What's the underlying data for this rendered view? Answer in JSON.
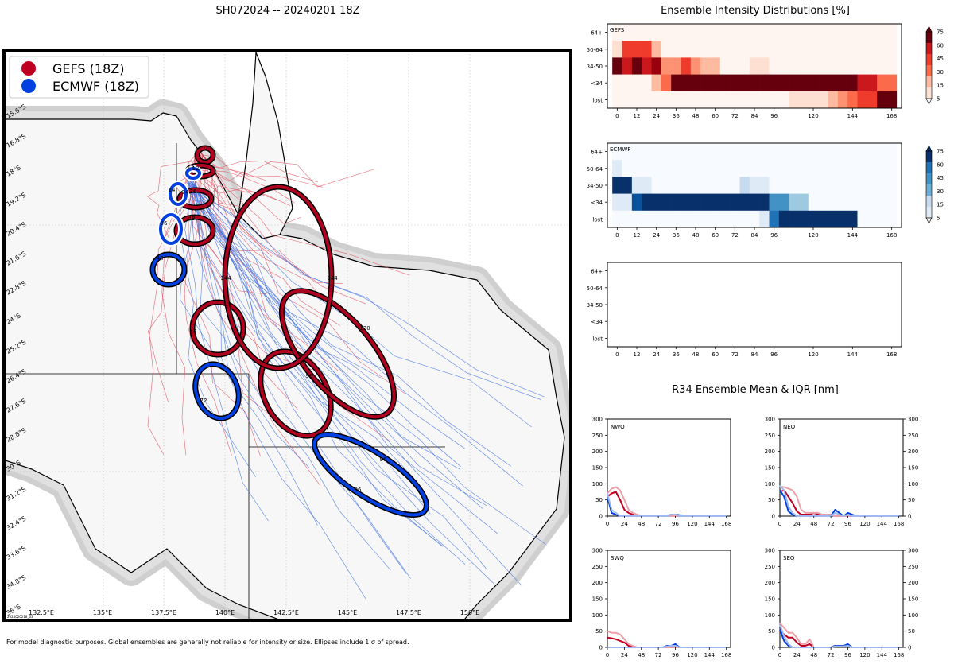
{
  "main_title": "SH072024 -- 20240201 18Z",
  "footnote": "For model diagnostic purposes. Global ensembles are generally not reliable for intensity or size. Ellipses include 1 σ of spread.",
  "map": {
    "legend": [
      {
        "label": "GEFS (18Z)",
        "color": "#c00020"
      },
      {
        "label": "ECMWF (18Z)",
        "color": "#0040e0"
      }
    ],
    "lat_labels": [
      "15.6°S",
      "16.8°S",
      "18°S",
      "19.2°S",
      "20.4°S",
      "21.6°S",
      "22.8°S",
      "24°S",
      "25.2°S",
      "26.4°S",
      "27.6°S",
      "28.8°S",
      "30°S",
      "31.2°S",
      "32.4°S",
      "33.6°S",
      "34.8°S",
      "36°S"
    ],
    "lon_labels": [
      "132.5°E",
      "135°E",
      "137.5°E",
      "140°E",
      "142.5°E",
      "145°E",
      "147.5°E",
      "150°E"
    ],
    "stamp": "2024020218_03",
    "gefs_hours": [
      "0",
      "12",
      "24",
      "36",
      "48",
      "72",
      "96",
      "120",
      "144",
      "144"
    ],
    "ecmwf_hours": [
      "12",
      "24",
      "36",
      "48",
      "72",
      "96",
      "96"
    ]
  },
  "intensity": {
    "title": "Ensemble Intensity Distributions [%]",
    "y_categories": [
      "64+",
      "50-64",
      "34-50",
      "<34",
      "lost"
    ],
    "x_ticks": [
      "0",
      "12",
      "24",
      "36",
      "48",
      "60",
      "72",
      "84",
      "96",
      "120",
      "144",
      "168"
    ],
    "panels": [
      {
        "label": "GEFS",
        "scheme": "red"
      },
      {
        "label": "ECMWF",
        "scheme": "blue"
      },
      {
        "label": "",
        "scheme": "none"
      }
    ],
    "colorbar_ticks": [
      "75",
      "60",
      "45",
      "30",
      "15",
      "5"
    ]
  },
  "r34": {
    "title": "R34 Ensemble Mean & IQR [nm]",
    "y_ticks": [
      "0",
      "50",
      "100",
      "150",
      "200",
      "250",
      "300"
    ],
    "x_ticks": [
      "0",
      "24",
      "48",
      "72",
      "96",
      "120",
      "144",
      "168"
    ],
    "quadrants": [
      "NWQ",
      "NEQ",
      "SWQ",
      "SEQ"
    ]
  },
  "chart_data": [
    {
      "type": "heatmap",
      "title": "GEFS",
      "x": [
        0,
        6,
        12,
        18,
        24,
        30,
        36,
        42,
        48,
        54,
        60,
        66,
        72,
        78,
        84,
        90,
        96,
        102,
        108,
        114,
        120,
        126,
        132,
        138,
        144,
        150,
        156,
        162,
        168
      ],
      "y_categories": [
        "64+",
        "50-64",
        "34-50",
        "<34",
        "lost"
      ],
      "values": {
        "64+": [
          0,
          0,
          0,
          0,
          0,
          0,
          0,
          0,
          0,
          0,
          0,
          0,
          0,
          0,
          0,
          0,
          0,
          0,
          0,
          0,
          0,
          0,
          0,
          0,
          0,
          0,
          0,
          0,
          0
        ],
        "50-64": [
          5,
          45,
          45,
          45,
          15,
          0,
          0,
          0,
          0,
          0,
          0,
          0,
          0,
          0,
          0,
          0,
          0,
          0,
          0,
          0,
          0,
          0,
          0,
          0,
          0,
          0,
          0,
          0,
          0
        ],
        "34-50": [
          80,
          55,
          75,
          60,
          70,
          25,
          25,
          45,
          30,
          15,
          15,
          0,
          0,
          0,
          10,
          10,
          0,
          0,
          0,
          0,
          0,
          0,
          0,
          0,
          0,
          0,
          0,
          0,
          0
        ],
        "<34": [
          0,
          0,
          0,
          0,
          15,
          40,
          85,
          90,
          75,
          95,
          95,
          95,
          95,
          95,
          95,
          95,
          95,
          95,
          95,
          95,
          95,
          95,
          95,
          85,
          85,
          55,
          55,
          40,
          40
        ],
        "lost": [
          0,
          0,
          0,
          0,
          0,
          0,
          0,
          0,
          0,
          0,
          0,
          0,
          0,
          0,
          0,
          0,
          0,
          0,
          10,
          10,
          10,
          10,
          20,
          30,
          40,
          50,
          50,
          75,
          75
        ]
      }
    },
    {
      "type": "heatmap",
      "title": "ECMWF",
      "x": [
        0,
        6,
        12,
        18,
        24,
        30,
        36,
        42,
        48,
        54,
        60,
        66,
        72,
        78,
        84,
        90,
        96,
        102,
        108,
        114,
        120,
        126,
        132,
        138,
        144,
        150,
        156,
        162,
        168
      ],
      "y_categories": [
        "64+",
        "50-64",
        "34-50",
        "<34",
        "lost"
      ],
      "values": {
        "64+": [
          0,
          0,
          0,
          0,
          0,
          0,
          0,
          0,
          0,
          0,
          0,
          0,
          0,
          0,
          0,
          0,
          0,
          0,
          0,
          0,
          0,
          0,
          0,
          0,
          0,
          0,
          0,
          0,
          0
        ],
        "50-64": [
          10,
          0,
          0,
          0,
          0,
          0,
          0,
          0,
          0,
          0,
          0,
          0,
          0,
          0,
          0,
          0,
          0,
          0,
          0,
          0,
          0,
          0,
          0,
          0,
          0,
          0,
          0,
          0,
          0
        ],
        "34-50": [
          85,
          85,
          10,
          10,
          0,
          0,
          0,
          0,
          0,
          0,
          0,
          0,
          0,
          20,
          10,
          10,
          0,
          0,
          0,
          0,
          0,
          0,
          0,
          0,
          0,
          0,
          0,
          0,
          0
        ],
        "<34": [
          10,
          10,
          65,
          95,
          95,
          95,
          95,
          95,
          95,
          95,
          95,
          95,
          95,
          95,
          95,
          95,
          45,
          45,
          25,
          25,
          0,
          0,
          0,
          0,
          0,
          0,
          0,
          0,
          0
        ],
        "lost": [
          0,
          0,
          0,
          0,
          0,
          0,
          0,
          0,
          0,
          0,
          0,
          0,
          0,
          0,
          0,
          10,
          55,
          85,
          85,
          85,
          85,
          85,
          85,
          85,
          85,
          0,
          0,
          0,
          0
        ]
      }
    },
    {
      "type": "heatmap",
      "title": "",
      "x": [],
      "y_categories": [
        "64+",
        "50-64",
        "34-50",
        "<34",
        "lost"
      ],
      "values": {}
    },
    {
      "type": "line",
      "title": "NWQ",
      "x": [
        0,
        6,
        12,
        18,
        24,
        30,
        36,
        42,
        48,
        54,
        60,
        66,
        72,
        78,
        84,
        90,
        96,
        102,
        108,
        114,
        120,
        126,
        132,
        138,
        144,
        150,
        156,
        162,
        168
      ],
      "xlim": [
        0,
        174
      ],
      "ylim": [
        0,
        300
      ],
      "series": [
        {
          "name": "GEFS mean",
          "color": "#c00020",
          "values": [
            60,
            70,
            75,
            50,
            20,
            10,
            5,
            0,
            0,
            0,
            0,
            0,
            0,
            0,
            0,
            0,
            0,
            0,
            0,
            0,
            0,
            0,
            0,
            0,
            0,
            0,
            0,
            0,
            0
          ]
        },
        {
          "name": "GEFS IQR",
          "color": "#eea0a8",
          "values": [
            70,
            85,
            90,
            80,
            50,
            20,
            10,
            5,
            0,
            0,
            0,
            0,
            0,
            0,
            0,
            0,
            0,
            0,
            0,
            0,
            0,
            0,
            0,
            0,
            0,
            0,
            0,
            0,
            0
          ]
        },
        {
          "name": "ECMWF mean",
          "color": "#0040e0",
          "values": [
            60,
            10,
            5,
            0,
            0,
            0,
            0,
            0,
            0,
            0,
            0,
            0,
            0,
            0,
            0,
            5,
            5,
            3,
            0,
            0,
            0,
            0,
            0,
            0,
            0,
            0,
            0,
            0,
            0
          ]
        },
        {
          "name": "ECMWF IQR",
          "color": "#a0b8f0",
          "values": [
            70,
            20,
            10,
            0,
            0,
            0,
            0,
            0,
            0,
            0,
            0,
            0,
            0,
            0,
            0,
            5,
            5,
            0,
            0,
            0,
            0,
            0,
            0,
            0,
            0,
            0,
            0,
            0,
            0
          ]
        }
      ]
    },
    {
      "type": "line",
      "title": "NEQ",
      "x": [
        0,
        6,
        12,
        18,
        24,
        30,
        36,
        42,
        48,
        54,
        60,
        66,
        72,
        78,
        84,
        90,
        96,
        102,
        108,
        114,
        120,
        126,
        132,
        138,
        144,
        150,
        156,
        162,
        168
      ],
      "xlim": [
        0,
        174
      ],
      "ylim": [
        0,
        300
      ],
      "series": [
        {
          "name": "GEFS mean",
          "color": "#c00020",
          "values": [
            75,
            80,
            60,
            40,
            15,
            5,
            5,
            5,
            10,
            5,
            5,
            5,
            5,
            0,
            0,
            0,
            0,
            0,
            0,
            0,
            0,
            0,
            0,
            0,
            0,
            0,
            0,
            0,
            0
          ]
        },
        {
          "name": "GEFS IQR",
          "color": "#eea0a8",
          "values": [
            90,
            90,
            85,
            80,
            60,
            20,
            10,
            10,
            10,
            10,
            5,
            5,
            5,
            0,
            0,
            0,
            0,
            0,
            0,
            0,
            0,
            0,
            0,
            0,
            0,
            0,
            0,
            0,
            0
          ]
        },
        {
          "name": "ECMWF mean",
          "color": "#0040e0",
          "values": [
            80,
            60,
            15,
            5,
            0,
            0,
            0,
            0,
            0,
            0,
            0,
            0,
            0,
            20,
            10,
            0,
            10,
            5,
            0,
            0,
            0,
            0,
            0,
            0,
            0,
            0,
            0,
            0,
            0
          ]
        },
        {
          "name": "ECMWF IQR",
          "color": "#a0b8f0",
          "values": [
            95,
            80,
            30,
            10,
            0,
            0,
            0,
            0,
            0,
            0,
            0,
            0,
            0,
            10,
            5,
            0,
            5,
            0,
            0,
            0,
            0,
            0,
            0,
            0,
            0,
            0,
            0,
            0,
            0
          ]
        }
      ]
    },
    {
      "type": "line",
      "title": "SWQ",
      "x": [
        0,
        6,
        12,
        18,
        24,
        30,
        36,
        42,
        48,
        54,
        60,
        66,
        72,
        78,
        84,
        90,
        96,
        102,
        108,
        114,
        120,
        126,
        132,
        138,
        144,
        150,
        156,
        162,
        168
      ],
      "xlim": [
        0,
        174
      ],
      "ylim": [
        0,
        300
      ],
      "series": [
        {
          "name": "GEFS mean",
          "color": "#c00020",
          "values": [
            30,
            28,
            25,
            20,
            15,
            5,
            0,
            0,
            0,
            0,
            0,
            0,
            0,
            0,
            0,
            0,
            0,
            0,
            0,
            0,
            0,
            0,
            0,
            0,
            0,
            0,
            0,
            0,
            0
          ]
        },
        {
          "name": "GEFS IQR",
          "color": "#eea0a8",
          "values": [
            50,
            45,
            45,
            40,
            25,
            10,
            5,
            0,
            0,
            0,
            0,
            0,
            0,
            0,
            0,
            0,
            0,
            0,
            0,
            0,
            0,
            0,
            0,
            0,
            0,
            0,
            0,
            0,
            0
          ]
        },
        {
          "name": "ECMWF mean",
          "color": "#0040e0",
          "values": [
            0,
            0,
            0,
            0,
            0,
            0,
            0,
            0,
            0,
            0,
            0,
            0,
            0,
            0,
            5,
            5,
            10,
            0,
            0,
            0,
            0,
            0,
            0,
            0,
            0,
            0,
            0,
            0,
            0
          ]
        },
        {
          "name": "ECMWF IQR",
          "color": "#a0b8f0",
          "values": [
            0,
            0,
            0,
            0,
            0,
            0,
            0,
            0,
            0,
            0,
            0,
            0,
            0,
            0,
            3,
            5,
            5,
            0,
            0,
            0,
            0,
            0,
            0,
            0,
            0,
            0,
            0,
            0,
            0
          ]
        }
      ]
    },
    {
      "type": "line",
      "title": "SEQ",
      "x": [
        0,
        6,
        12,
        18,
        24,
        30,
        36,
        42,
        48,
        54,
        60,
        66,
        72,
        78,
        84,
        90,
        96,
        102,
        108,
        114,
        120,
        126,
        132,
        138,
        144,
        150,
        156,
        162,
        168
      ],
      "xlim": [
        0,
        174
      ],
      "ylim": [
        0,
        300
      ],
      "series": [
        {
          "name": "GEFS mean",
          "color": "#c00020",
          "values": [
            50,
            40,
            30,
            30,
            15,
            5,
            5,
            10,
            0,
            0,
            0,
            0,
            0,
            5,
            5,
            5,
            5,
            0,
            0,
            0,
            0,
            0,
            0,
            0,
            0,
            0,
            0,
            0,
            0
          ]
        },
        {
          "name": "GEFS IQR",
          "color": "#eea0a8",
          "values": [
            75,
            60,
            45,
            45,
            30,
            10,
            10,
            25,
            0,
            0,
            0,
            0,
            0,
            5,
            5,
            5,
            5,
            0,
            0,
            0,
            0,
            0,
            0,
            0,
            0,
            0,
            0,
            0,
            0
          ]
        },
        {
          "name": "ECMWF mean",
          "color": "#0040e0",
          "values": [
            55,
            20,
            5,
            0,
            0,
            0,
            0,
            0,
            0,
            0,
            0,
            0,
            0,
            5,
            5,
            5,
            10,
            0,
            0,
            0,
            0,
            0,
            0,
            0,
            0,
            0,
            0,
            0,
            0
          ]
        },
        {
          "name": "ECMWF IQR",
          "color": "#a0b8f0",
          "values": [
            70,
            35,
            10,
            0,
            0,
            0,
            0,
            0,
            0,
            0,
            0,
            0,
            0,
            3,
            3,
            3,
            5,
            0,
            0,
            0,
            0,
            0,
            0,
            0,
            0,
            0,
            0,
            0,
            0
          ]
        }
      ]
    }
  ]
}
